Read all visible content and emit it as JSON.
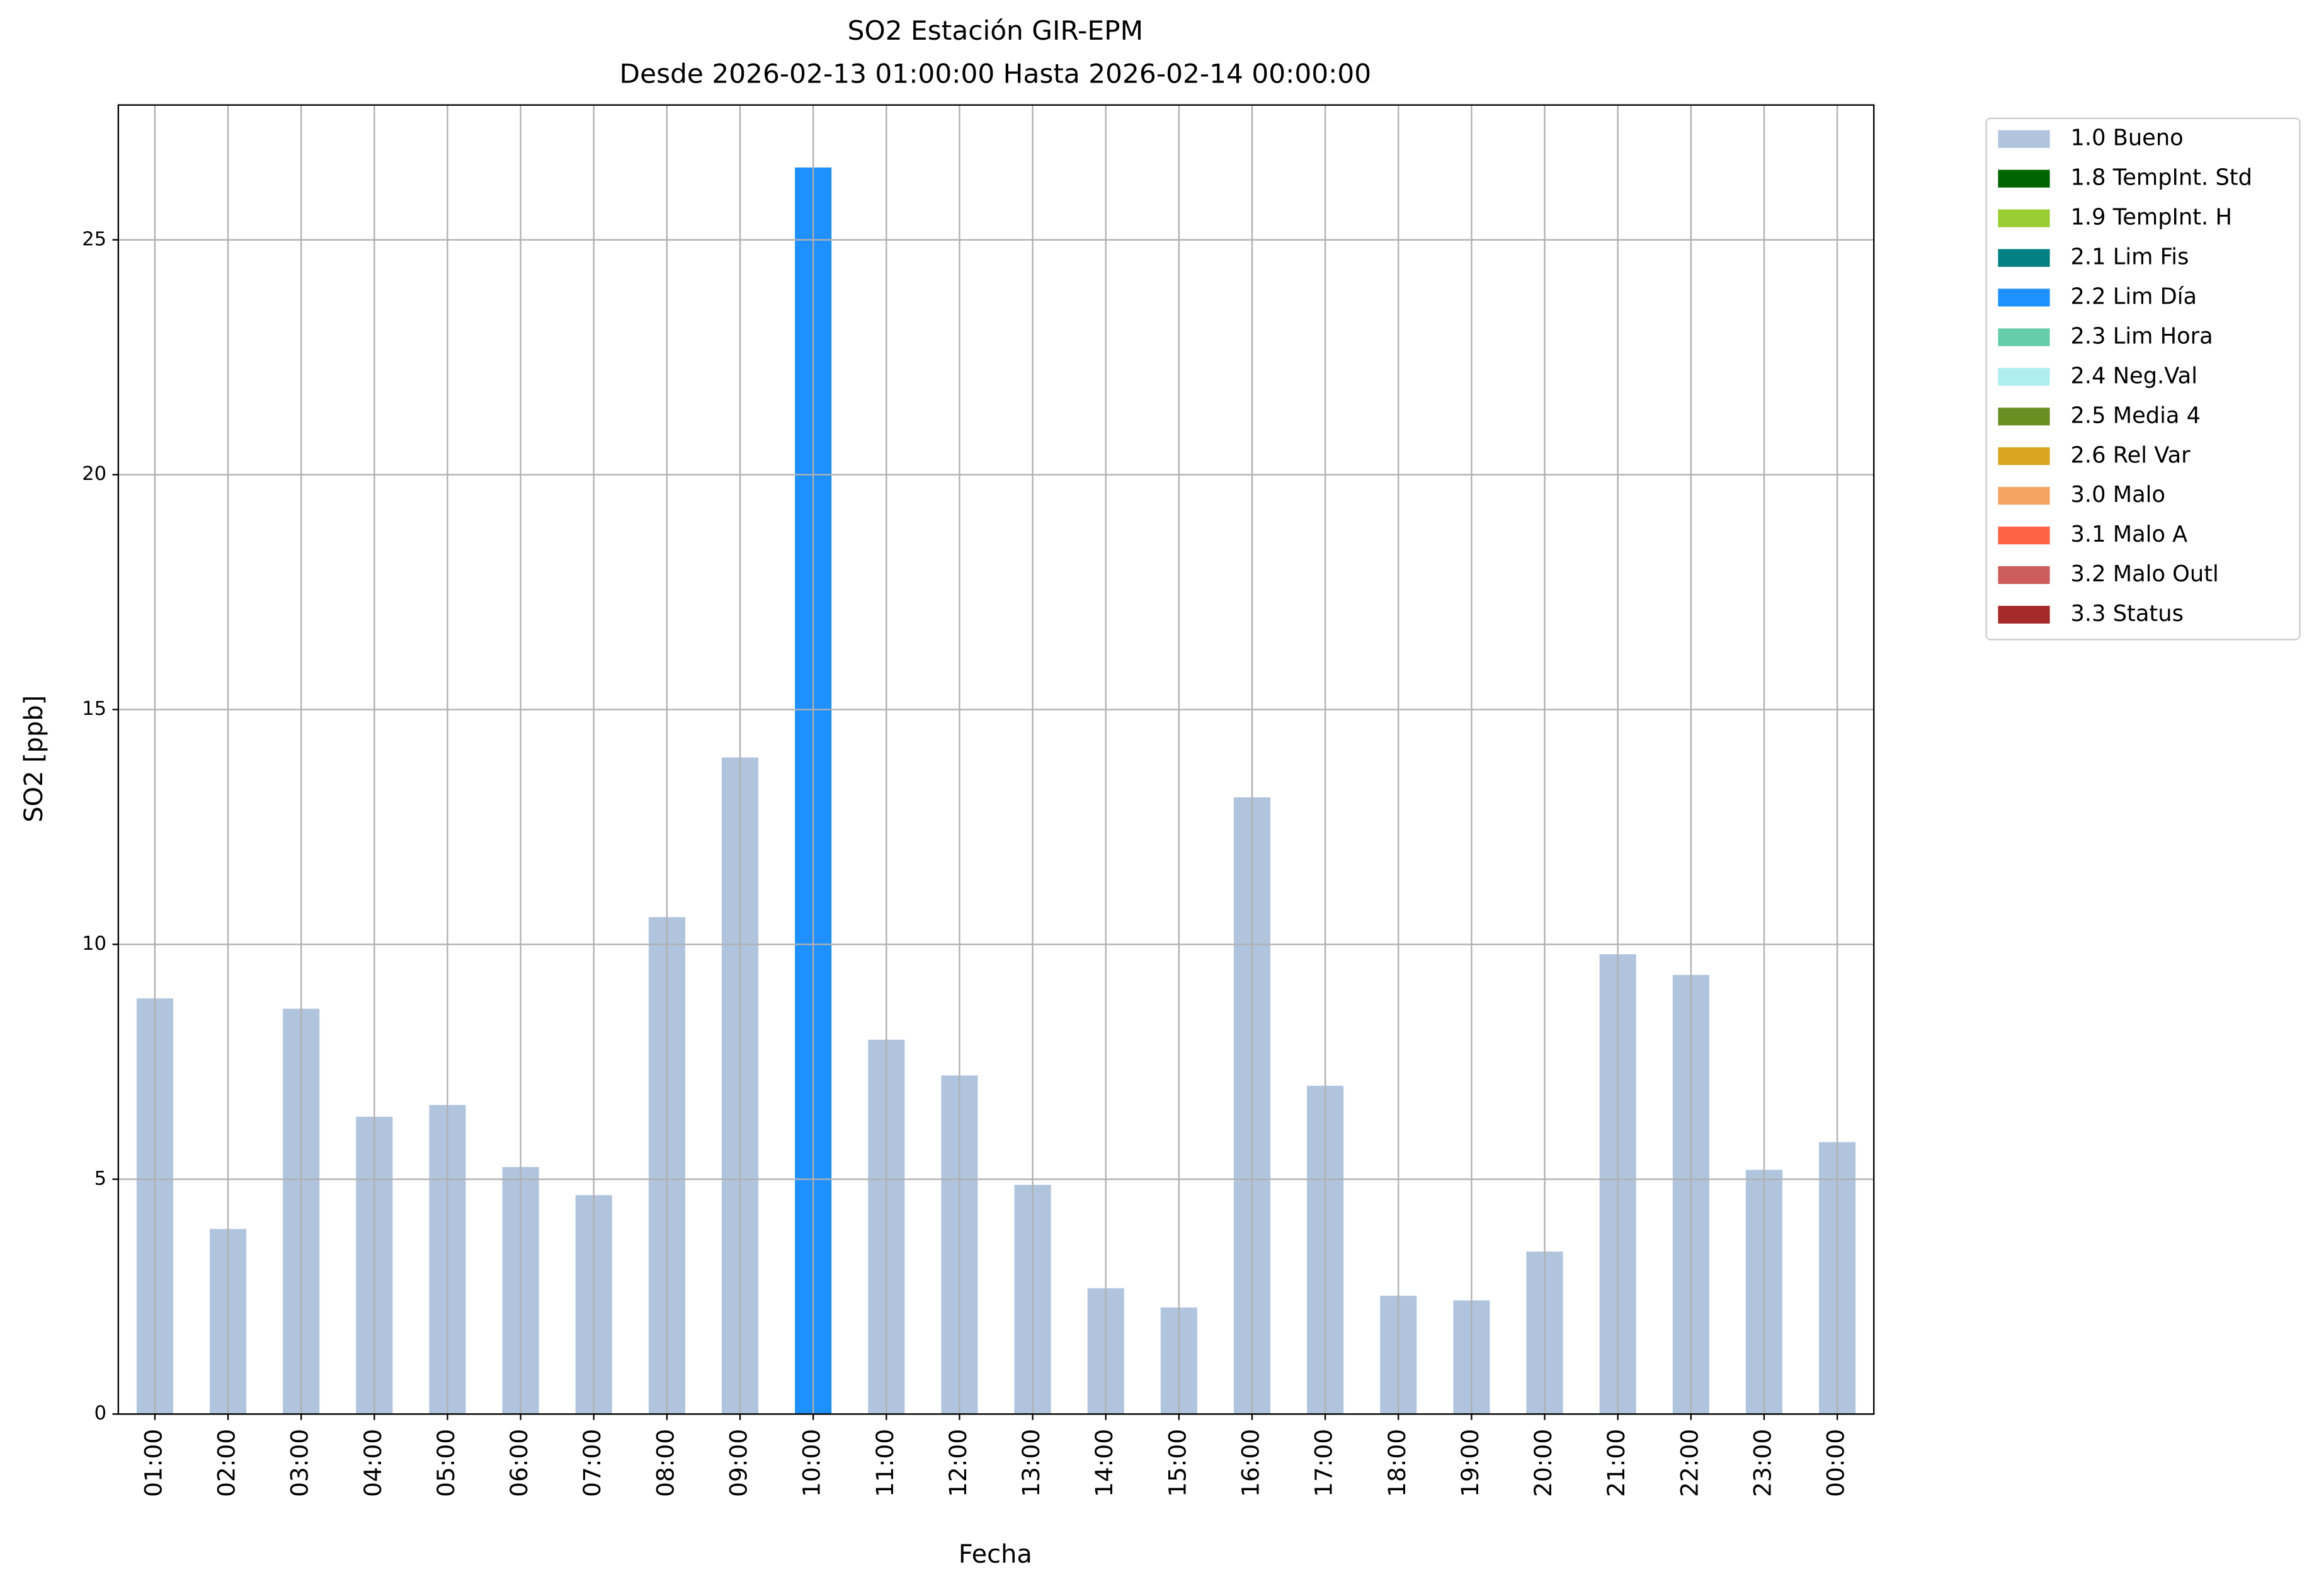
{
  "chart_data": {
    "type": "bar",
    "stacked": true,
    "title": "SO2 Estación GIR-EPM",
    "subtitle": "Desde 2026-02-13 01:00:00 Hasta 2026-02-14 00:00:00",
    "x_label": "Fecha",
    "y_label": "SO2 [ppb]",
    "categories": [
      "01:00",
      "02:00",
      "03:00",
      "04:00",
      "05:00",
      "06:00",
      "07:00",
      "08:00",
      "09:00",
      "10:00",
      "11:00",
      "12:00",
      "13:00",
      "14:00",
      "15:00",
      "16:00",
      "17:00",
      "18:00",
      "19:00",
      "20:00",
      "21:00",
      "22:00",
      "23:00",
      "00:00"
    ],
    "series": [
      {
        "name": "1.0 Bueno",
        "color": "#b0c4de",
        "values": [
          8.85,
          3.94,
          8.63,
          6.33,
          6.58,
          5.26,
          4.66,
          10.58,
          13.98,
          null,
          7.97,
          7.21,
          4.88,
          2.68,
          2.27,
          13.13,
          6.99,
          2.52,
          2.42,
          3.46,
          9.79,
          9.35,
          5.2,
          5.79
        ]
      },
      {
        "name": "1.8 TempInt. Std",
        "color": "#006400",
        "values": [
          null,
          null,
          null,
          null,
          null,
          null,
          null,
          null,
          null,
          null,
          null,
          null,
          null,
          null,
          null,
          null,
          null,
          null,
          null,
          null,
          null,
          null,
          null,
          null
        ]
      },
      {
        "name": "1.9 TempInt. H",
        "color": "#9acd32",
        "values": [
          null,
          null,
          null,
          null,
          null,
          null,
          null,
          null,
          null,
          null,
          null,
          null,
          null,
          null,
          null,
          null,
          null,
          null,
          null,
          null,
          null,
          null,
          null,
          null
        ]
      },
      {
        "name": "2.1 Lim Fis",
        "color": "#008080",
        "values": [
          null,
          null,
          null,
          null,
          null,
          null,
          null,
          null,
          null,
          null,
          null,
          null,
          null,
          null,
          null,
          null,
          null,
          null,
          null,
          null,
          null,
          null,
          null,
          null
        ]
      },
      {
        "name": "2.2 Lim Día",
        "color": "#1e90ff",
        "values": [
          null,
          null,
          null,
          null,
          null,
          null,
          null,
          null,
          null,
          26.54,
          null,
          null,
          null,
          null,
          null,
          null,
          null,
          null,
          null,
          null,
          null,
          null,
          null,
          null
        ]
      },
      {
        "name": "2.3 Lim Hora",
        "color": "#66cdaa",
        "values": [
          null,
          null,
          null,
          null,
          null,
          null,
          null,
          null,
          null,
          null,
          null,
          null,
          null,
          null,
          null,
          null,
          null,
          null,
          null,
          null,
          null,
          null,
          null,
          null
        ]
      },
      {
        "name": "2.4 Neg.Val",
        "color": "#afeeee",
        "values": [
          null,
          null,
          null,
          null,
          null,
          null,
          null,
          null,
          null,
          null,
          null,
          null,
          null,
          null,
          null,
          null,
          null,
          null,
          null,
          null,
          null,
          null,
          null,
          null
        ]
      },
      {
        "name": "2.5 Media 4",
        "color": "#6b8e23",
        "values": [
          null,
          null,
          null,
          null,
          null,
          null,
          null,
          null,
          null,
          null,
          null,
          null,
          null,
          null,
          null,
          null,
          null,
          null,
          null,
          null,
          null,
          null,
          null,
          null
        ]
      },
      {
        "name": "2.6 Rel Var",
        "color": "#daa520",
        "values": [
          null,
          null,
          null,
          null,
          null,
          null,
          null,
          null,
          null,
          null,
          null,
          null,
          null,
          null,
          null,
          null,
          null,
          null,
          null,
          null,
          null,
          null,
          null,
          null
        ]
      },
      {
        "name": "3.0 Malo",
        "color": "#f4a460",
        "values": [
          null,
          null,
          null,
          null,
          null,
          null,
          null,
          null,
          null,
          null,
          null,
          null,
          null,
          null,
          null,
          null,
          null,
          null,
          null,
          null,
          null,
          null,
          null,
          null
        ]
      },
      {
        "name": "3.1 Malo A",
        "color": "#ff6347",
        "values": [
          null,
          null,
          null,
          null,
          null,
          null,
          null,
          null,
          null,
          null,
          null,
          null,
          null,
          null,
          null,
          null,
          null,
          null,
          null,
          null,
          null,
          null,
          null,
          null
        ]
      },
      {
        "name": "3.2 Malo Outl",
        "color": "#cd5c5c",
        "values": [
          null,
          null,
          null,
          null,
          null,
          null,
          null,
          null,
          null,
          null,
          null,
          null,
          null,
          null,
          null,
          null,
          null,
          null,
          null,
          null,
          null,
          null,
          null,
          null
        ]
      },
      {
        "name": "3.3 Status",
        "color": "#a52a2a",
        "values": [
          null,
          null,
          null,
          null,
          null,
          null,
          null,
          null,
          null,
          null,
          null,
          null,
          null,
          null,
          null,
          null,
          null,
          null,
          null,
          null,
          null,
          null,
          null,
          null
        ]
      }
    ],
    "ylim": [
      0,
      27.87
    ],
    "yticks": [
      0,
      5,
      10,
      15,
      20,
      25
    ],
    "grid": true,
    "legend": "outside upper right"
  }
}
